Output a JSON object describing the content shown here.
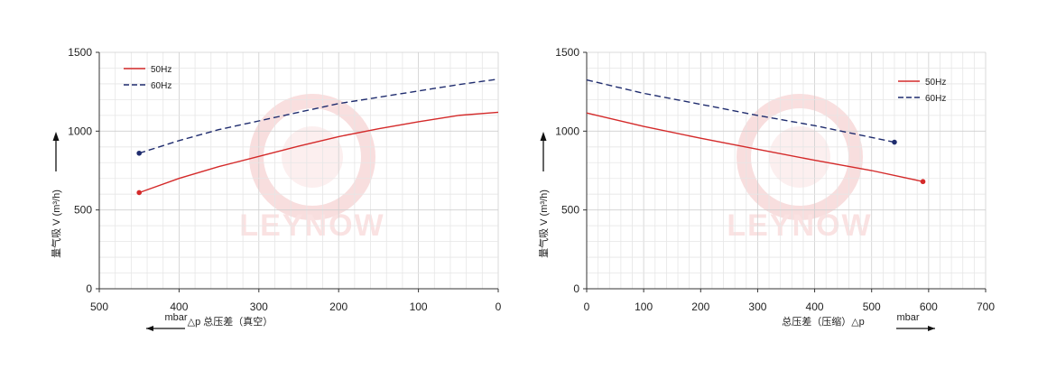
{
  "watermark": {
    "brand": "LEYNOW"
  },
  "chart_data": [
    {
      "type": "line",
      "xlim": [
        500,
        0
      ],
      "ylim": [
        0,
        1500
      ],
      "xticks": [
        500,
        400,
        300,
        200,
        100,
        0
      ],
      "yticks": [
        0,
        500,
        1000,
        1500
      ],
      "grid": true,
      "legend_position": "top-left",
      "ylabel": "量气吸 V (m³/h)",
      "xlabel": "△p 总压差（真空）",
      "unit_label": "mbar",
      "series": [
        {
          "name": "50Hz",
          "color": "#d42a2a",
          "dash": false,
          "x": [
            450,
            400,
            350,
            300,
            250,
            200,
            150,
            100,
            50,
            0
          ],
          "y": [
            610,
            700,
            775,
            840,
            905,
            965,
            1015,
            1060,
            1100,
            1120
          ]
        },
        {
          "name": "60Hz",
          "color": "#1f2c6e",
          "dash": true,
          "x": [
            450,
            400,
            350,
            300,
            250,
            200,
            150,
            100,
            50,
            0
          ],
          "y": [
            860,
            940,
            1010,
            1065,
            1120,
            1175,
            1215,
            1255,
            1295,
            1330
          ]
        }
      ]
    },
    {
      "type": "line",
      "xlim": [
        0,
        700
      ],
      "ylim": [
        0,
        1500
      ],
      "xticks": [
        0,
        100,
        200,
        300,
        400,
        500,
        600,
        700
      ],
      "yticks": [
        0,
        500,
        1000,
        1500
      ],
      "grid": true,
      "legend_position": "top-right",
      "ylabel": "量气吸 V (m³/h)",
      "xlabel": "总压差（压缩）△p",
      "unit_label": "mbar",
      "series": [
        {
          "name": "50Hz",
          "color": "#d42a2a",
          "dash": false,
          "x": [
            0,
            100,
            200,
            300,
            400,
            500,
            590
          ],
          "y": [
            1115,
            1030,
            955,
            885,
            815,
            750,
            680
          ]
        },
        {
          "name": "60Hz",
          "color": "#1f2c6e",
          "dash": true,
          "x": [
            0,
            100,
            200,
            300,
            400,
            500,
            540
          ],
          "y": [
            1325,
            1240,
            1170,
            1100,
            1035,
            960,
            930
          ]
        }
      ]
    }
  ]
}
